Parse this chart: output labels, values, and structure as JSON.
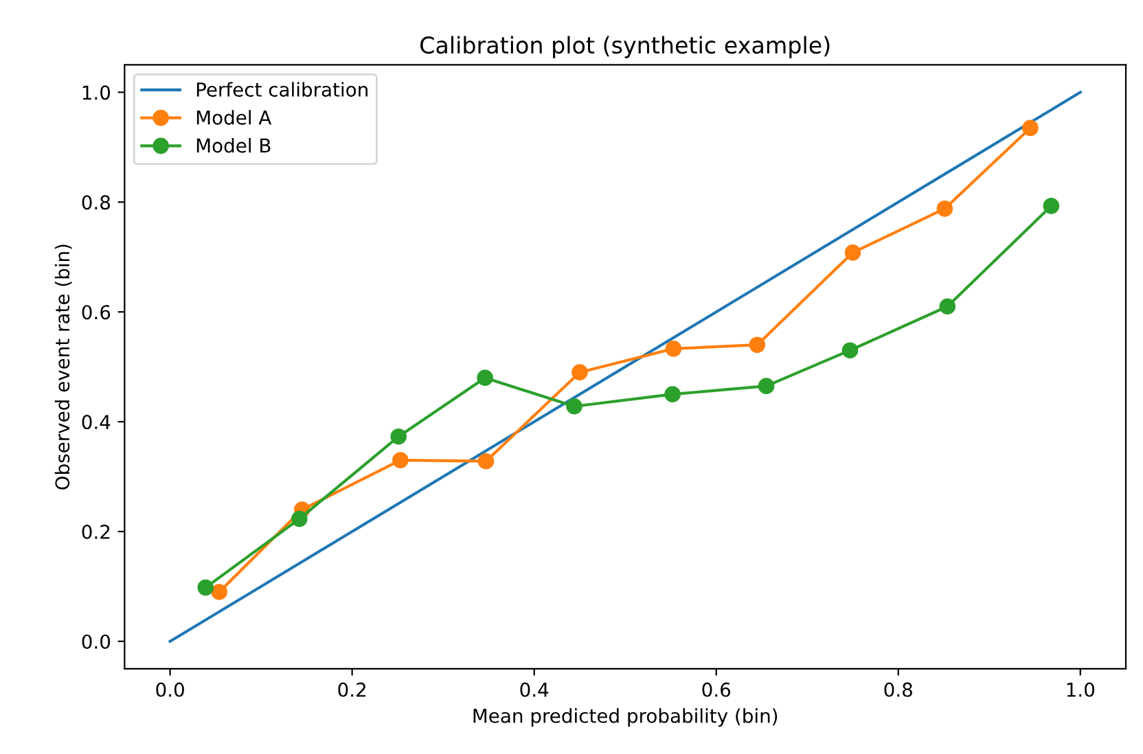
{
  "chart_data": {
    "type": "line",
    "title": "Calibration plot (synthetic example)",
    "xlabel": "Mean predicted probability (bin)",
    "ylabel": "Observed event rate (bin)",
    "series": [
      {
        "name": "Perfect calibration",
        "color": "#1f77b4",
        "x": [
          0.0,
          1.0
        ],
        "values": [
          0.0,
          1.0
        ],
        "marker": "none"
      },
      {
        "name": "Model A",
        "color": "#ff7f0e",
        "marker": "circle",
        "x": [
          0.054,
          0.145,
          0.253,
          0.347,
          0.45,
          0.553,
          0.645,
          0.75,
          0.851,
          0.945
        ],
        "values": [
          0.09,
          0.24,
          0.33,
          0.328,
          0.49,
          0.533,
          0.54,
          0.708,
          0.788,
          0.935
        ]
      },
      {
        "name": "Model B",
        "color": "#2ca02c",
        "marker": "circle",
        "x": [
          0.039,
          0.142,
          0.251,
          0.346,
          0.444,
          0.552,
          0.655,
          0.747,
          0.854,
          0.968
        ],
        "values": [
          0.098,
          0.223,
          0.373,
          0.48,
          0.428,
          0.45,
          0.465,
          0.53,
          0.61,
          0.793
        ]
      }
    ],
    "xlim": [
      -0.05,
      1.05
    ],
    "ylim": [
      -0.05,
      1.05
    ],
    "xticks": [
      {
        "value": 0.0,
        "label": "0.0"
      },
      0.2,
      0.4,
      0.6,
      0.8,
      {
        "value": 1.0,
        "label": "1.0"
      }
    ],
    "yticks": [
      {
        "value": 0.0,
        "label": "0.0"
      },
      0.2,
      0.4,
      0.6,
      0.8,
      {
        "value": 1.0,
        "label": "1.0"
      }
    ],
    "legend": "top left",
    "grid": false,
    "line_style": "solid"
  }
}
